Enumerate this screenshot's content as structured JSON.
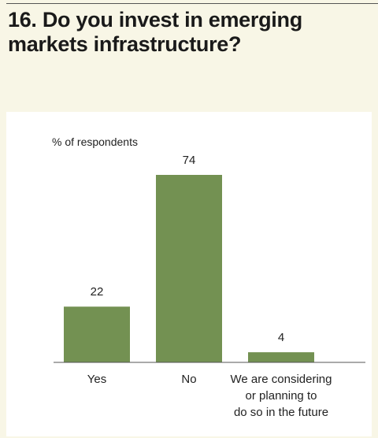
{
  "title": "16. Do you invest in emerging markets infrastructure?",
  "colors": {
    "background": "#f8f6e6",
    "panel": "#ffffff",
    "bar": "#739152",
    "axis": "#555555",
    "text": "#1a1a1a"
  },
  "chart_data": {
    "type": "bar",
    "title": "16. Do you invest in emerging markets infrastructure?",
    "ylabel": "% of respondents",
    "xlabel": "",
    "categories": [
      [
        "Yes"
      ],
      [
        "No"
      ],
      [
        "We are considering",
        "or planning to",
        "do so in the future"
      ]
    ],
    "values": [
      22,
      74,
      4
    ],
    "ylim": [
      0,
      100
    ],
    "grid": false,
    "data_labels": true
  }
}
